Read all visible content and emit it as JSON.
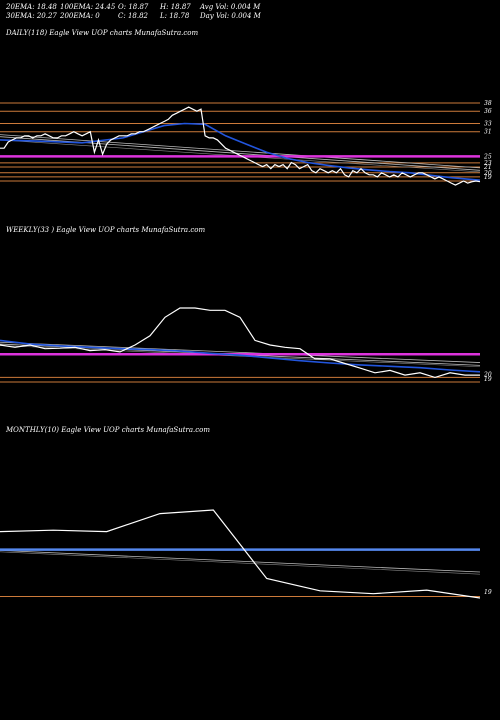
{
  "header": {
    "ema20": "20EMA: 18.48",
    "ema100": "100EMA: 24.45",
    "open": "O: 18.87",
    "high": "H: 18.87",
    "avgvol": "Avg Vol: 0.004 M",
    "ema30": "30EMA: 20.27",
    "ema200": "200EMA: 0",
    "close": "C: 18.82",
    "low": "L: 18.78",
    "dayvol": "Day Vol: 0.004 M"
  },
  "panels": {
    "daily_label": "DAILY(118) Eagle   View  UOP charts MunafaSutra.com",
    "weekly_label": "WEEKLY(33                              ) Eagle   View  UOP charts MunafaSutra.com",
    "monthly_label": "MONTHLY(10) Eagle   View  UOP charts MunafaSutra.com"
  },
  "colors": {
    "background": "#000000",
    "price": "#ffffff",
    "ema": "#2255dd",
    "level_line": "#cc7a3a",
    "magenta": "#dd33dd",
    "blue_band": "#5588ee",
    "grey_line": "#bbbbbb"
  },
  "chart_data": [
    {
      "type": "line",
      "panel": "daily",
      "right_ticks": [
        "38",
        "36",
        "33",
        "31",
        "25",
        "23",
        "21",
        "20",
        "19"
      ],
      "series": [
        {
          "role": "price",
          "x": [
            0,
            1,
            2,
            3,
            4,
            5,
            6,
            7,
            8,
            9,
            10,
            11,
            12,
            13,
            14,
            15,
            16,
            17,
            18,
            19,
            20,
            21,
            22,
            23,
            24,
            25,
            26,
            27,
            28,
            29,
            30,
            31,
            32,
            33,
            34,
            35,
            36,
            37,
            38,
            39,
            40,
            41,
            42,
            43,
            44,
            45,
            46,
            47,
            48,
            49,
            50,
            51,
            52,
            53,
            54,
            55,
            56,
            57,
            58,
            59,
            60,
            61,
            62,
            63,
            64,
            65,
            66,
            67,
            68,
            69,
            70,
            71,
            72,
            73,
            74,
            75,
            76,
            77,
            78,
            79,
            80,
            81,
            82,
            83,
            84,
            85,
            86,
            87,
            88,
            89,
            90,
            91,
            92,
            93,
            94,
            95,
            96,
            97,
            98,
            99,
            100,
            101,
            102,
            103,
            104,
            105,
            106,
            107,
            108,
            109,
            110,
            111,
            112,
            113,
            114,
            115,
            116,
            117
          ],
          "y": [
            27,
            27,
            28.5,
            29,
            29.5,
            29.5,
            30,
            30,
            29.5,
            30,
            30,
            30.5,
            30,
            29.5,
            29.5,
            30,
            30,
            30.5,
            31,
            30.5,
            30,
            30.5,
            31,
            26,
            29,
            25.5,
            28,
            29,
            29.5,
            30,
            30,
            30,
            30.5,
            30.5,
            31,
            31,
            31.5,
            32,
            32.5,
            33,
            33.5,
            34,
            35,
            35.5,
            36,
            36.5,
            37,
            36.5,
            36,
            36.5,
            30,
            29.5,
            29.5,
            29,
            28,
            27,
            26.5,
            26,
            25.5,
            25,
            24.5,
            24,
            23.5,
            23,
            22.5,
            23,
            22,
            23,
            22.5,
            23,
            22,
            23.5,
            23,
            22,
            22.5,
            23,
            21.5,
            21,
            22,
            21.5,
            21,
            21.5,
            21,
            22,
            20.5,
            20,
            21.5,
            21,
            22,
            21,
            20.5,
            20.5,
            20,
            21,
            20.5,
            20,
            20.5,
            20,
            21,
            20.5,
            20,
            20.5,
            21,
            21,
            20.5,
            20,
            19.5,
            20,
            19.5,
            19,
            18.5,
            18,
            18.5,
            19,
            18.5,
            18.8,
            19,
            18.82
          ]
        },
        {
          "role": "ema",
          "x": [
            0,
            10,
            20,
            30,
            35,
            40,
            45,
            50,
            55,
            60,
            65,
            70,
            75,
            80,
            85,
            90,
            95,
            100,
            105,
            110,
            117
          ],
          "y": [
            29,
            28.7,
            28.3,
            29.5,
            31,
            32.5,
            33,
            32.8,
            30,
            28,
            26,
            24.5,
            23.5,
            22.8,
            22.2,
            21.7,
            21.3,
            21,
            20.4,
            19.8,
            19.2
          ]
        }
      ],
      "levels_orange": [
        38,
        36,
        33,
        31,
        23.4,
        22.4,
        21,
        20,
        19
      ],
      "level_magenta": 25
    },
    {
      "type": "line",
      "panel": "weekly",
      "right_ticks": [
        "20",
        "19"
      ],
      "series": [
        {
          "role": "price",
          "x": [
            0,
            1,
            2,
            3,
            4,
            5,
            6,
            7,
            8,
            9,
            10,
            11,
            12,
            13,
            14,
            15,
            16,
            17,
            18,
            19,
            20,
            21,
            22,
            23,
            24,
            25,
            26,
            27,
            28,
            29,
            30,
            31,
            32
          ],
          "y": [
            27,
            26.5,
            27,
            26.2,
            26.3,
            26.5,
            25.8,
            26,
            25.5,
            27,
            29,
            33,
            35,
            35,
            34.5,
            34.5,
            33,
            28,
            27,
            26.5,
            26.2,
            24,
            24,
            23,
            22,
            21,
            21.5,
            20.5,
            21,
            20,
            21,
            20.5,
            20.5
          ]
        },
        {
          "role": "ema",
          "x": [
            0,
            2,
            4,
            6,
            8,
            10,
            12,
            14,
            16,
            18,
            20,
            22,
            24,
            26,
            28,
            30,
            32
          ],
          "y": [
            28,
            27.2,
            26.8,
            26.5,
            26.2,
            26,
            25.7,
            25.2,
            24.8,
            24.2,
            23.6,
            23.1,
            22.7,
            22.4,
            22.1,
            21.6,
            21.2
          ]
        }
      ],
      "level_magenta": 25,
      "levels_orange": [
        20,
        19
      ]
    },
    {
      "type": "line",
      "panel": "monthly",
      "right_ticks": [
        "19"
      ],
      "series": [
        {
          "role": "price",
          "x": [
            0,
            1,
            2,
            3,
            4,
            5,
            6,
            7,
            8,
            9
          ],
          "y": [
            28,
            28.2,
            28,
            30.5,
            31,
            21.5,
            19.8,
            19.4,
            19.9,
            18.8
          ]
        }
      ],
      "level_blue": 25.5,
      "levels_orange": [
        19
      ]
    }
  ]
}
